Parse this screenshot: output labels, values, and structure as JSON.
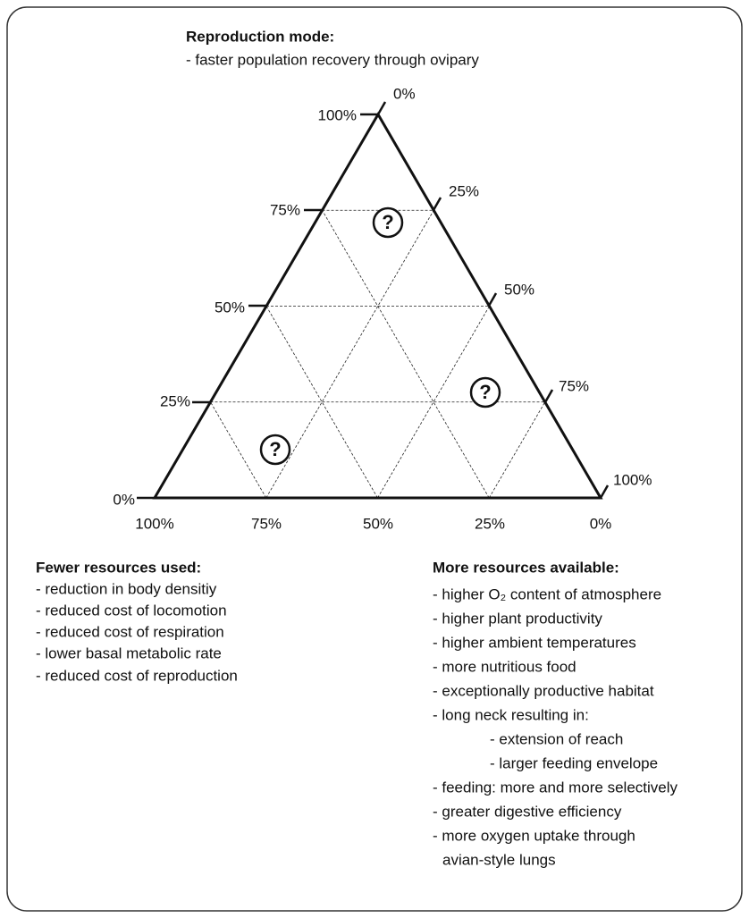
{
  "top": {
    "title": "Reproduction mode:",
    "items": [
      "- faster population recovery through ovipary"
    ]
  },
  "ternary": {
    "left_ticks": [
      "100%",
      "75%",
      "50%",
      "25%",
      "0%"
    ],
    "right_ticks": [
      "0%",
      "25%",
      "50%",
      "75%",
      "100%"
    ],
    "bottom_ticks": [
      "100%",
      "75%",
      "50%",
      "25%",
      "0%"
    ],
    "markers": [
      "?",
      "?",
      "?"
    ]
  },
  "left_block": {
    "title": "Fewer resources used:",
    "items": [
      "- reduction in body densitiy",
      "- reduced cost of locomotion",
      "- reduced cost of respiration",
      "- lower basal metabolic rate",
      "- reduced cost of reproduction"
    ]
  },
  "right_block": {
    "title": "More resources available:",
    "items": [
      "- higher O₂ content of atmosphere",
      "- higher plant productivity",
      "- higher ambient temperatures",
      "- more nutritious food",
      "- exceptionally productive habitat",
      "- long neck resulting in:",
      "- extension of reach",
      "- larger feeding envelope",
      "- feeding: more and more selectively",
      "- greater digestive efficiency",
      "- more oxygen uptake through",
      "avian-style lungs"
    ]
  }
}
